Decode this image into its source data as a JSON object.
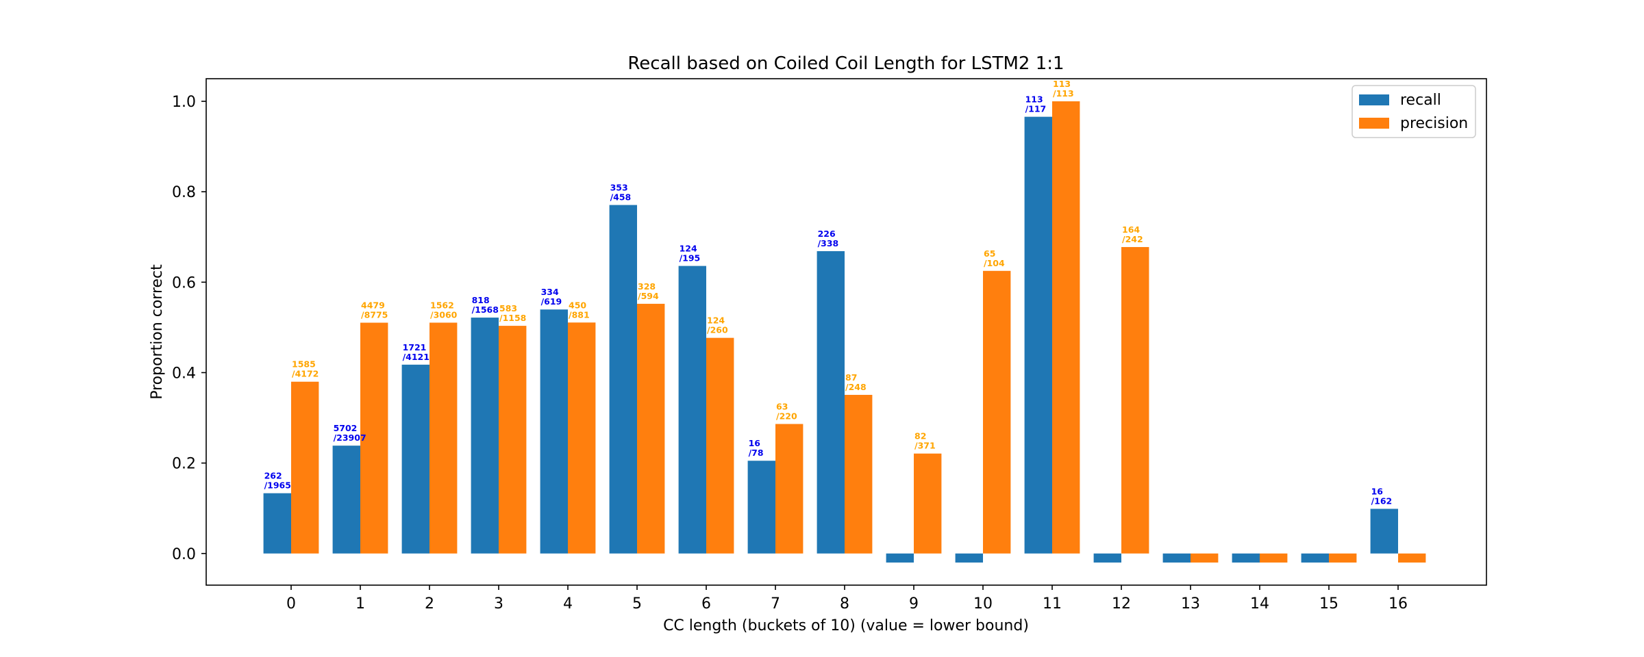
{
  "chart_data": {
    "type": "bar",
    "title": "Recall based on Coiled Coil Length for LSTM2 1:1",
    "xlabel": "CC length (buckets of 10) (value = lower bound)",
    "ylabel": "Proportion correct",
    "ylim": [
      -0.07,
      1.05
    ],
    "yticks": [
      "0.0",
      "0.2",
      "0.4",
      "0.6",
      "0.8",
      "1.0"
    ],
    "categories": [
      "0",
      "1",
      "2",
      "3",
      "4",
      "5",
      "6",
      "7",
      "8",
      "9",
      "10",
      "11",
      "12",
      "13",
      "14",
      "15",
      "16"
    ],
    "legend_position": "top-right",
    "grid": false,
    "series": [
      {
        "name": "recall",
        "color": "#1f77b4",
        "label_color": "#0000ee",
        "values": [
          0.1333,
          0.2385,
          0.4176,
          0.5217,
          0.5396,
          0.7707,
          0.6359,
          0.2051,
          0.6686,
          -0.02,
          -0.02,
          0.9658,
          -0.02,
          -0.02,
          -0.02,
          -0.02,
          0.0988
        ],
        "labels": [
          [
            "262",
            "/1965"
          ],
          [
            "5702",
            "/23907"
          ],
          [
            "1721",
            "/4121"
          ],
          [
            "818",
            "/1568"
          ],
          [
            "334",
            "/619"
          ],
          [
            "353",
            "/458"
          ],
          [
            "124",
            "/195"
          ],
          [
            "16",
            "/78"
          ],
          [
            "226",
            "/338"
          ],
          null,
          null,
          [
            "113",
            "/117"
          ],
          null,
          null,
          null,
          null,
          [
            "16",
            "/162"
          ]
        ]
      },
      {
        "name": "precision",
        "color": "#ff7f0e",
        "label_color": "#ffa500",
        "values": [
          0.3799,
          0.5104,
          0.5105,
          0.5035,
          0.5108,
          0.5522,
          0.4769,
          0.2864,
          0.3508,
          0.221,
          0.625,
          1.0,
          0.6777,
          -0.02,
          -0.02,
          -0.02,
          -0.02
        ],
        "labels": [
          [
            "1585",
            "/4172"
          ],
          [
            "4479",
            "/8775"
          ],
          [
            "1562",
            "/3060"
          ],
          [
            "583",
            "/1158"
          ],
          [
            "450",
            "/881"
          ],
          [
            "328",
            "/594"
          ],
          [
            "124",
            "/260"
          ],
          [
            "63",
            "/220"
          ],
          [
            "87",
            "/248"
          ],
          [
            "82",
            "/371"
          ],
          [
            "65",
            "/104"
          ],
          [
            "113",
            "/113"
          ],
          [
            "164",
            "/242"
          ],
          null,
          null,
          null,
          null
        ]
      }
    ]
  }
}
